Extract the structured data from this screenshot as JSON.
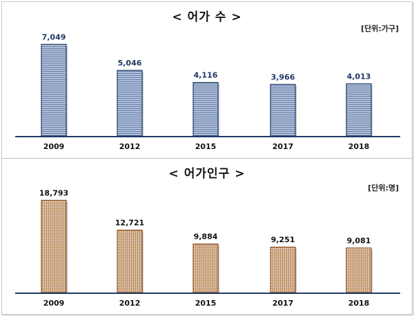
{
  "chart_data": [
    {
      "type": "bar",
      "title": "< 어가 수 >",
      "unit_label": "[단위:가구]",
      "categories": [
        "2009",
        "2012",
        "2015",
        "2017",
        "2018"
      ],
      "values": [
        7049,
        5046,
        4116,
        3966,
        4013
      ],
      "value_labels": [
        "7,049",
        "5,046",
        "4,116",
        "3,966",
        "4,013"
      ],
      "ylim": [
        0,
        8500
      ],
      "grid": false,
      "colors": {
        "bar": "#aebfd9",
        "bar_line": "#6b7fa8",
        "bar_edge": "#1f3864",
        "axis": "#1f3864",
        "label": "#1f3864"
      }
    },
    {
      "type": "bar",
      "title": "< 어가인구 >",
      "unit_label": "[단위:명]",
      "categories": [
        "2009",
        "2012",
        "2015",
        "2017",
        "2018"
      ],
      "values": [
        18793,
        12721,
        9884,
        9251,
        9081
      ],
      "value_labels": [
        "18,793",
        "12,721",
        "9,884",
        "9,251",
        "9,081"
      ],
      "ylim": [
        0,
        22500
      ],
      "grid": false,
      "colors": {
        "bar": "#d9b48f",
        "bar_line": "#b58354",
        "bar_edge": "#8a4a1e",
        "axis": "#1f3864",
        "label": "#111111"
      }
    }
  ]
}
